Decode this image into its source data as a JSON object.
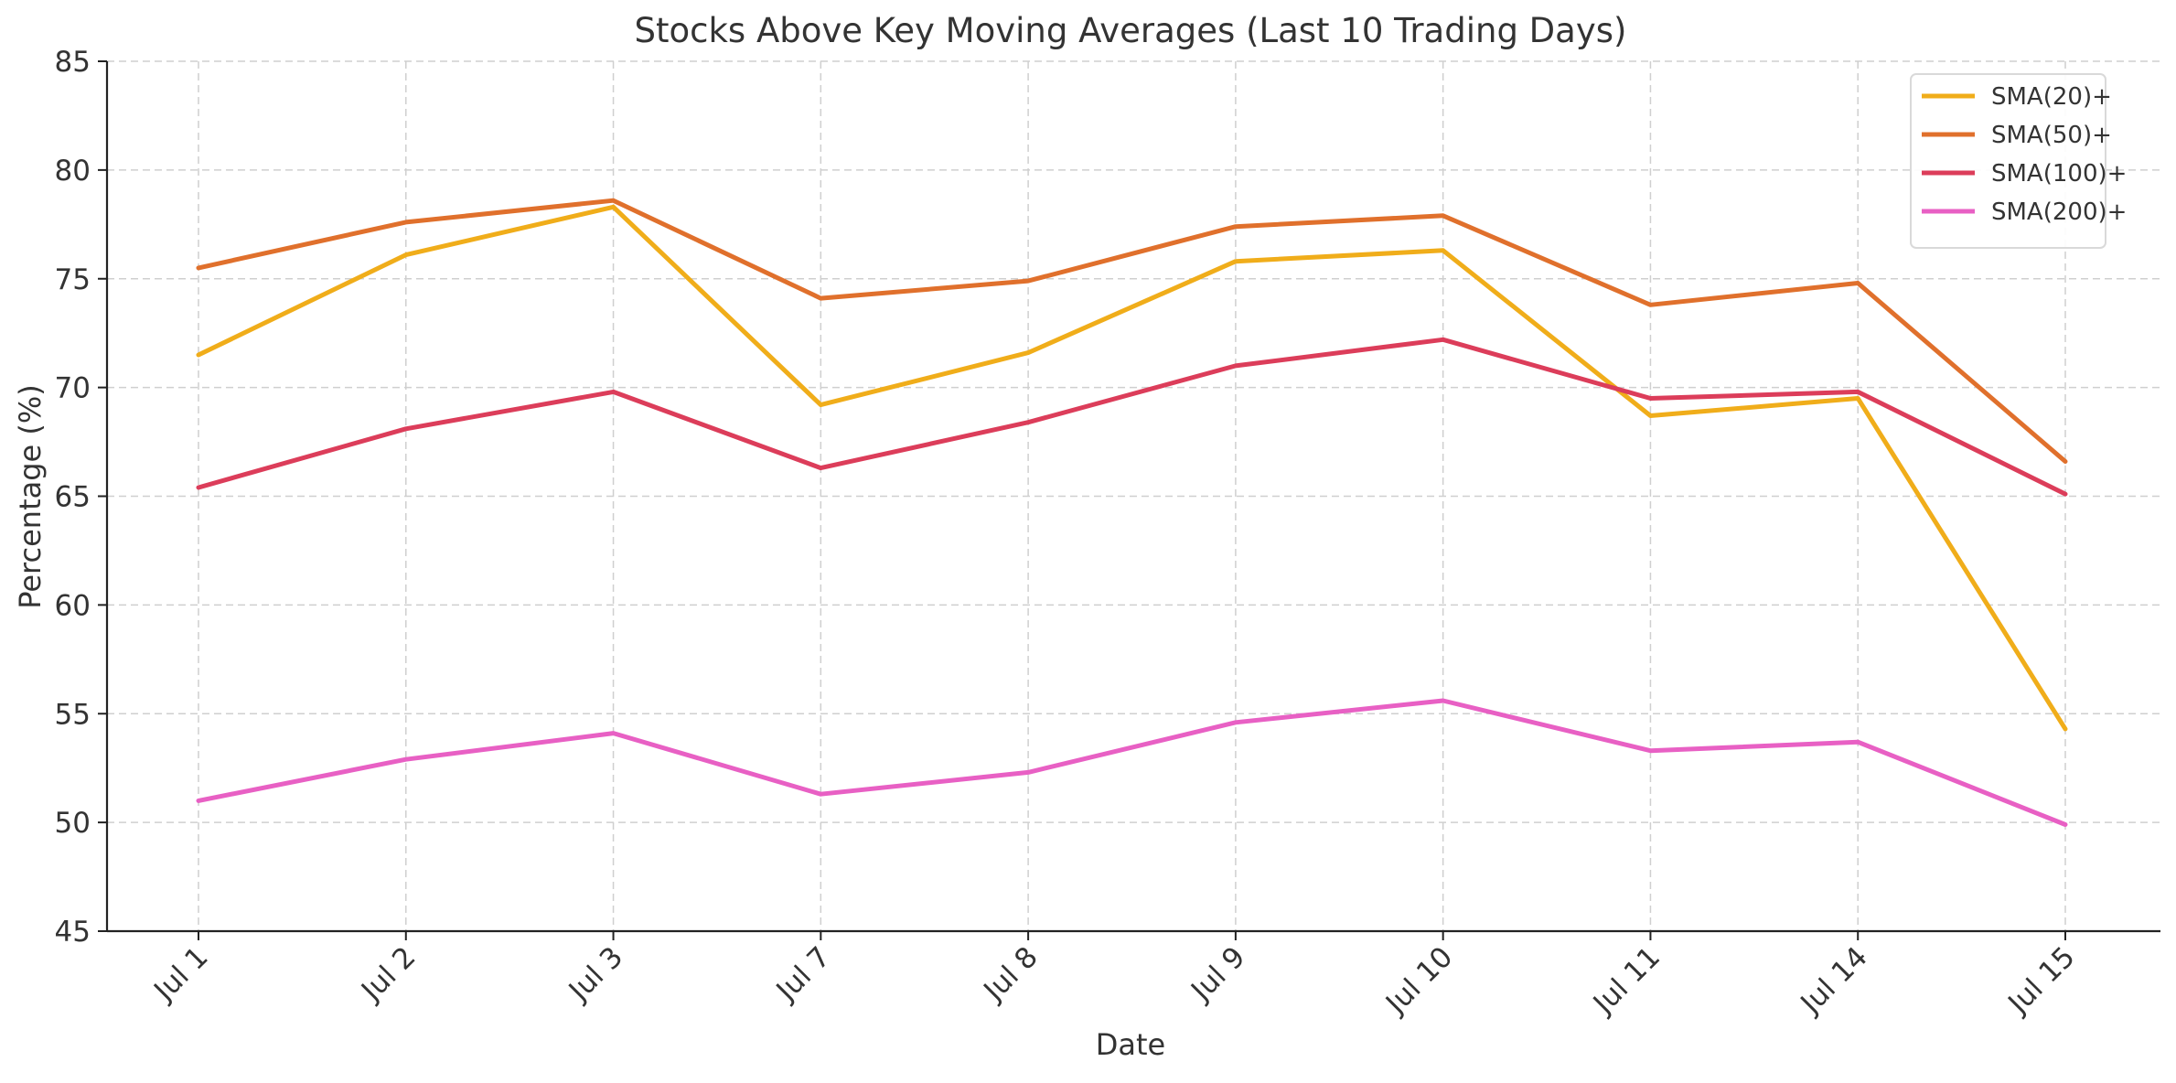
{
  "chart_data": {
    "type": "line",
    "title": "Stocks Above Key Moving Averages (Last 10 Trading Days)",
    "xlabel": "Date",
    "ylabel": "Percentage (%)",
    "categories": [
      "Jul 1",
      "Jul 2",
      "Jul 3",
      "Jul 7",
      "Jul 8",
      "Jul 9",
      "Jul 10",
      "Jul 11",
      "Jul 14",
      "Jul 15"
    ],
    "ylim": [
      45,
      85
    ],
    "yticks": [
      45,
      50,
      55,
      60,
      65,
      70,
      75,
      80,
      85
    ],
    "grid": true,
    "legend_position": "top-right",
    "series": [
      {
        "name": "SMA(20)+",
        "color": "#f0ad1a",
        "values": [
          71.5,
          76.1,
          78.3,
          69.2,
          71.6,
          75.8,
          76.3,
          68.7,
          69.5,
          54.3
        ]
      },
      {
        "name": "SMA(50)+",
        "color": "#e0702c",
        "values": [
          75.5,
          77.6,
          78.6,
          74.1,
          74.9,
          77.4,
          77.9,
          73.8,
          74.8,
          66.6
        ]
      },
      {
        "name": "SMA(100)+",
        "color": "#dc3d5a",
        "values": [
          65.4,
          68.1,
          69.8,
          66.3,
          68.4,
          71.0,
          72.2,
          69.5,
          69.8,
          65.1
        ]
      },
      {
        "name": "SMA(200)+",
        "color": "#e860c4",
        "values": [
          51.0,
          52.9,
          54.1,
          51.3,
          52.3,
          54.6,
          55.6,
          53.3,
          53.7,
          49.9
        ]
      }
    ]
  }
}
